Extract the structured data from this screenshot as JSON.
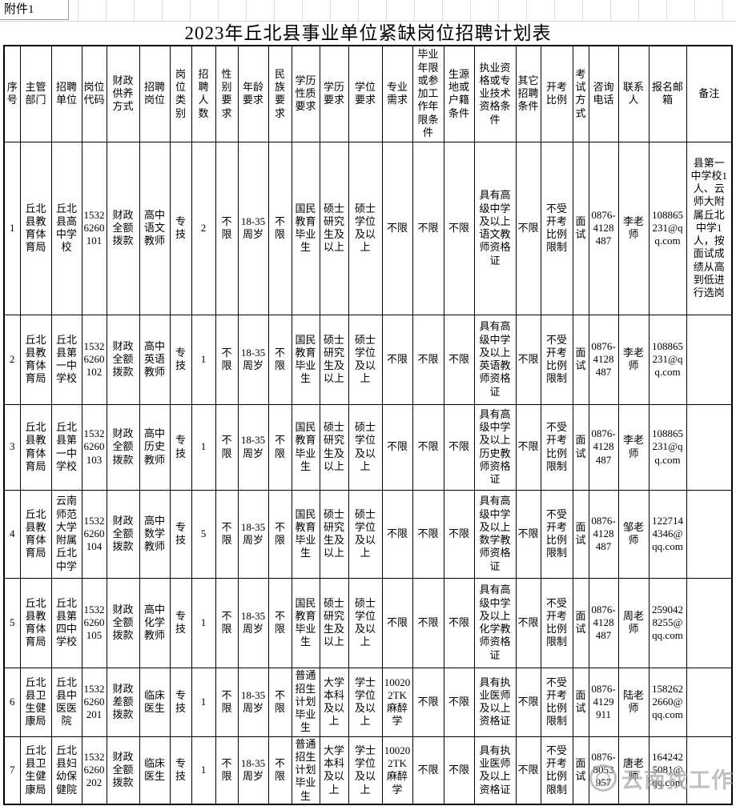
{
  "attachment_label": "附件1",
  "title": "2023年丘北县事业单位紧缺岗位招聘计划表",
  "watermark": {
    "text": "云南找工作"
  },
  "table": {
    "headers": [
      "序号",
      "主管部门",
      "招聘单位",
      "岗位代码",
      "财政供养方式",
      "招聘岗位",
      "岗位类别",
      "招聘人数",
      "性别要求",
      "年龄要求",
      "民族要求",
      "学历性质要求",
      "学历要求",
      "学位要求",
      "专业需求",
      "毕业年限或参加工作年限条件",
      "生源地或户籍条件",
      "执业资格或专业技术资格条件",
      "其它招聘条件",
      "开考比例",
      "考试方式",
      "咨询电话",
      "联系人",
      "报名邮箱",
      "备注"
    ],
    "rows": [
      [
        "1",
        "丘北县教育体育局",
        "丘北县高中学校",
        "15326260101",
        "财政全额拨款",
        "高中语文教师",
        "专技",
        "2",
        "不限",
        "18-35周岁",
        "不限",
        "国民教育毕业生",
        "硕士研究生及以上",
        "硕士学位及以上",
        "不限",
        "不限",
        "不限",
        "具有高级中学及以上语文教师资格证",
        "不限",
        "不受开考比例限制",
        "面试",
        "0876-4128487",
        "李老师",
        "108865231@qq.com",
        "县第一中学校1人、云师大附属丘北中学1人，按面试成绩从高到低进行选岗"
      ],
      [
        "2",
        "丘北县教育体育局",
        "丘北县第一中学校",
        "15326260102",
        "财政全额拨款",
        "高中英语教师",
        "专技",
        "1",
        "不限",
        "18-35周岁",
        "不限",
        "国民教育毕业生",
        "硕士研究生及以上",
        "硕士学位及以上",
        "不限",
        "不限",
        "不限",
        "具有高级中学及以上英语教师资格证",
        "不限",
        "不受开考比例限制",
        "面试",
        "0876-4128487",
        "李老师",
        "108865231@qq.com",
        ""
      ],
      [
        "3",
        "丘北县教育体育局",
        "丘北县第一中学校",
        "15326260103",
        "财政全额拨款",
        "高中历史教师",
        "专技",
        "1",
        "不限",
        "18-35周岁",
        "不限",
        "国民教育毕业生",
        "硕士研究生及以上",
        "硕士学位及以上",
        "不限",
        "不限",
        "不限",
        "具有高级中学及以上历史教师资格证",
        "不限",
        "不受开考比例限制",
        "面试",
        "0876-4128487",
        "李老师",
        "108865231@qq.com",
        ""
      ],
      [
        "4",
        "丘北县教育体育局",
        "云南师范大学附属丘北中学",
        "15326260104",
        "财政全额拨款",
        "高中数学教师",
        "专技",
        "5",
        "不限",
        "18-35周岁",
        "不限",
        "国民教育毕业生",
        "硕士研究生及以上",
        "硕士学位及以上",
        "不限",
        "不限",
        "不限",
        "具有高级中学及以上数学教师资格证",
        "不限",
        "不受开考比例限制",
        "面试",
        "0876-4128487",
        "邹老师",
        "1227144346@qq.com",
        ""
      ],
      [
        "5",
        "丘北县教育体育局",
        "丘北县第四中学校",
        "15326260105",
        "财政全额拨款",
        "高中化学教师",
        "专技",
        "1",
        "不限",
        "18-35周岁",
        "不限",
        "国民教育毕业生",
        "硕士研究生及以上",
        "硕士学位及以上",
        "不限",
        "不限",
        "不限",
        "具有高级中学及以上化学教师资格证",
        "不限",
        "不受开考比例限制",
        "面试",
        "0876-4128487",
        "周老师",
        "2590428255@qq.com",
        ""
      ],
      [
        "6",
        "丘北县卫生健康局",
        "丘北县中医医院",
        "15326260201",
        "财政差额拨款",
        "临床医生",
        "专技",
        "1",
        "不限",
        "18-35周岁",
        "不限",
        "普通招生计划毕业生",
        "大学本科及以上",
        "学士学位及以上",
        "100202TK麻醉学",
        "不限",
        "不限",
        "具有执业医师及以上资格证",
        "不限",
        "不受开考比例限制",
        "面试",
        "0876-4129911",
        "陆老师",
        "1582622660@qq.com",
        ""
      ],
      [
        "7",
        "丘北县卫生健康局",
        "丘北县妇幼保健院",
        "15326260202",
        "财政全额拨款",
        "临床医生",
        "专技",
        "1",
        "不限",
        "18-35周岁",
        "不限",
        "普通招生计划毕业生",
        "大学本科及以上",
        "学士学位及以上",
        "100202TK麻醉学",
        "不限",
        "不限",
        "具有执业医师及以上资格证",
        "不限",
        "不受开考比例限制",
        "面试",
        "0876-8053957",
        "唐老师",
        "1642425081@qq.com",
        ""
      ]
    ]
  }
}
